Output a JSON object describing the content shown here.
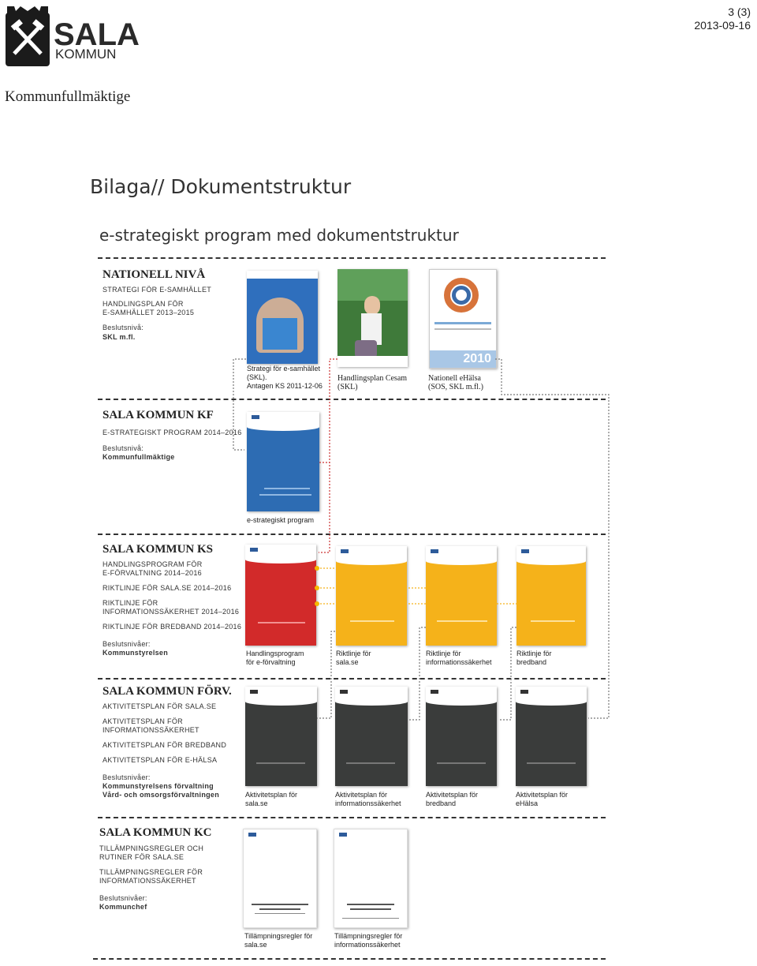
{
  "header": {
    "brand_main": "SALA",
    "brand_sub": "KOMMUN",
    "page_number": "3 (3)",
    "date": "2013-09-16",
    "organization": "Kommunfullmäktige"
  },
  "titles": {
    "main": "Bilaga// Dokumentstruktur",
    "sub": "e-strategiskt program med dokumentstruktur"
  },
  "sections": {
    "national": {
      "title": "NATIONELL NIVÅ",
      "lines": [
        "STRATEGI FÖR E-SAMHÄLLET",
        "HANDLINGSPLAN FÖR",
        "E-SAMHÄLLET 2013–2015"
      ],
      "level_label": "Beslutsnivå:",
      "level_value": "SKL m.fl.",
      "docs": [
        {
          "caption": [
            "Strategi för e-samhället",
            "(SKL).",
            "Antagen KS 2011-12-06"
          ]
        },
        {
          "caption": [
            "Handlingsplan Cesam",
            "(SKL)"
          ]
        },
        {
          "caption": [
            "Nationell eHälsa",
            "(SOS, SKL m.fl.)"
          ]
        }
      ],
      "doc3_year": "2010"
    },
    "kf": {
      "title": "SALA KOMMUN KF",
      "lines": [
        "E-STRATEGISKT PROGRAM 2014–2016"
      ],
      "level_label": "Beslutsnivå:",
      "level_value": "Kommunfullmäktige",
      "doc_caption": "e-strategiskt program"
    },
    "ks": {
      "title": "SALA KOMMUN KS",
      "lines": [
        "HANDLINGSPROGRAM FÖR",
        "E-FÖRVALTNING 2014–2016",
        "RIKTLINJE FÖR SALA.SE 2014–2016",
        "RIKTLINJE FÖR",
        "INFORMATIONSSÄKERHET 2014–2016",
        "RIKTLINJE FÖR BREDBAND 2014–2016"
      ],
      "level_label": "Beslutsnivåer:",
      "level_value": "Kommunstyrelsen",
      "docs": [
        {
          "caption": [
            "Handlingsprogram",
            "för e-förvaltning"
          ]
        },
        {
          "caption": [
            "Riktlinje för",
            "sala.se"
          ]
        },
        {
          "caption": [
            "Riktlinje för",
            "informationssäkerhet"
          ]
        },
        {
          "caption": [
            "Riktlinje för",
            "bredband"
          ]
        }
      ]
    },
    "forv": {
      "title": "SALA KOMMUN FÖRV.",
      "lines": [
        "AKTIVITETSPLAN FÖR SALA.SE",
        "AKTIVITETSPLAN FÖR",
        "INFORMATIONSSÄKERHET",
        "AKTIVITETSPLAN FÖR BREDBAND",
        "AKTIVITETSPLAN FÖR E-HÄLSA"
      ],
      "level_label": "Beslutsnivåer:",
      "level_value_1": "Kommunstyrelsens förvaltning",
      "level_value_2": "Vård- och omsorgsförvaltningen",
      "docs": [
        {
          "caption": [
            "Aktivitetsplan för",
            "sala.se"
          ]
        },
        {
          "caption": [
            "Aktivitetsplan för",
            "informationssäkerhet"
          ]
        },
        {
          "caption": [
            "Aktivitetsplan för",
            "bredband"
          ]
        },
        {
          "caption": [
            "Aktivitetsplan för",
            "eHälsa"
          ]
        }
      ]
    },
    "kc": {
      "title": "SALA KOMMUN KC",
      "lines": [
        "TILLÄMPNINGSREGLER OCH",
        "RUTINER FÖR SALA.SE",
        "TILLÄMPNINGSREGLER FÖR",
        "INFORMATIONSSÄKERHET"
      ],
      "level_label": "Beslutsnivåer:",
      "level_value": "Kommunchef",
      "docs": [
        {
          "caption": [
            "Tillämpningsregler för",
            "sala.se"
          ]
        },
        {
          "caption": [
            "Tillämpningsregler för",
            "informationssäkerhet"
          ]
        }
      ]
    }
  },
  "colors": {
    "blue": "#2d6cb3",
    "red": "#d22a2a",
    "orange": "#f5b21a",
    "dark": "#3a3c3b",
    "connector_red": "#cc3333"
  }
}
